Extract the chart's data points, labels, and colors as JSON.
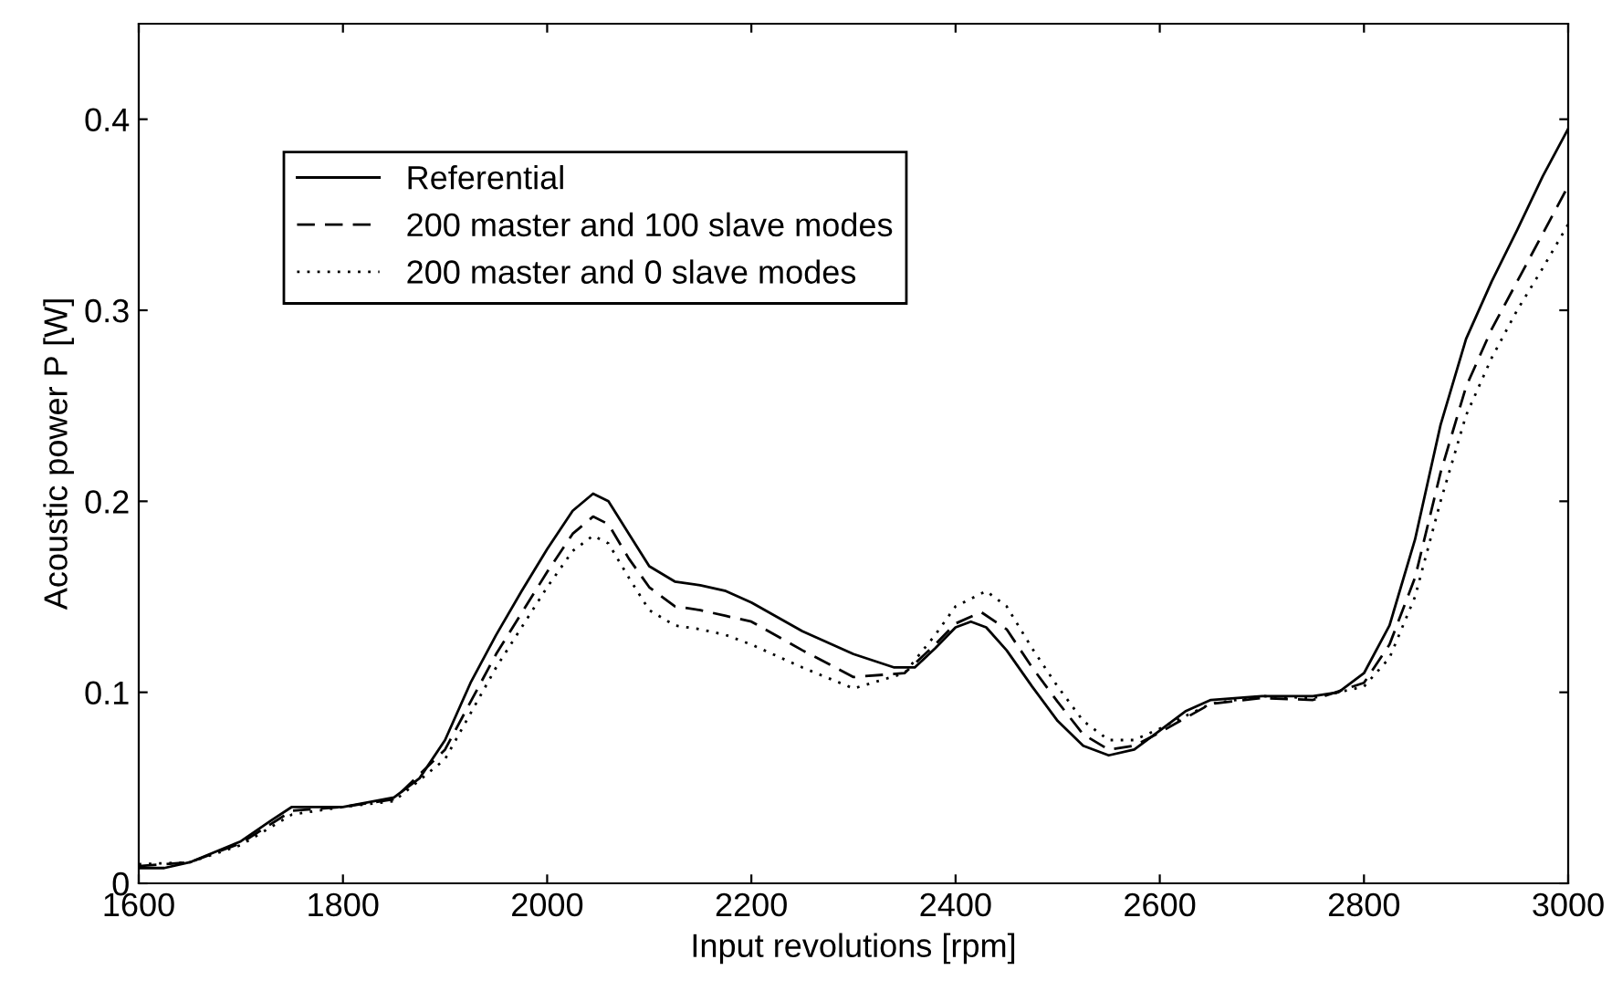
{
  "chart_data": {
    "type": "line",
    "xlabel": "Input revolutions [rpm]",
    "ylabel": "Acoustic power P [W]",
    "xlim": [
      1600,
      3000
    ],
    "ylim": [
      0,
      0.45
    ],
    "xticks": [
      1600,
      1800,
      2000,
      2200,
      2400,
      2600,
      2800,
      3000
    ],
    "yticks": [
      0,
      0.1,
      0.2,
      0.3,
      0.4
    ],
    "grid": false,
    "legend": "top left",
    "series": [
      {
        "name": "Referential",
        "color": "#000000",
        "line_style": "solid",
        "x": [
          1600,
          1625,
          1650,
          1700,
          1730,
          1750,
          1775,
          1800,
          1850,
          1875,
          1900,
          1925,
          1950,
          1975,
          2000,
          2025,
          2045,
          2060,
          2080,
          2100,
          2125,
          2150,
          2175,
          2200,
          2250,
          2300,
          2340,
          2360,
          2380,
          2400,
          2415,
          2430,
          2450,
          2475,
          2500,
          2525,
          2550,
          2575,
          2600,
          2625,
          2650,
          2700,
          2750,
          2775,
          2800,
          2825,
          2850,
          2875,
          2900,
          2925,
          2950,
          2975,
          3000
        ],
        "values": [
          0.008,
          0.008,
          0.011,
          0.022,
          0.033,
          0.04,
          0.04,
          0.04,
          0.045,
          0.055,
          0.075,
          0.105,
          0.13,
          0.153,
          0.175,
          0.195,
          0.204,
          0.2,
          0.183,
          0.166,
          0.158,
          0.156,
          0.153,
          0.147,
          0.132,
          0.12,
          0.113,
          0.113,
          0.123,
          0.134,
          0.137,
          0.134,
          0.122,
          0.103,
          0.085,
          0.072,
          0.067,
          0.07,
          0.08,
          0.09,
          0.096,
          0.098,
          0.098,
          0.1,
          0.11,
          0.135,
          0.18,
          0.24,
          0.285,
          0.315,
          0.342,
          0.37,
          0.395
        ]
      },
      {
        "name": "200 master and 100 slave modes",
        "color": "#000000",
        "line_style": "dashed",
        "x": [
          1600,
          1650,
          1700,
          1750,
          1800,
          1850,
          1900,
          1950,
          2000,
          2025,
          2045,
          2060,
          2080,
          2100,
          2125,
          2150,
          2175,
          2200,
          2250,
          2300,
          2350,
          2380,
          2400,
          2425,
          2450,
          2475,
          2500,
          2525,
          2550,
          2575,
          2600,
          2650,
          2700,
          2750,
          2800,
          2825,
          2850,
          2875,
          2900,
          2925,
          2950,
          2975,
          3000
        ],
        "values": [
          0.009,
          0.011,
          0.021,
          0.038,
          0.04,
          0.044,
          0.07,
          0.12,
          0.163,
          0.183,
          0.192,
          0.188,
          0.17,
          0.155,
          0.145,
          0.143,
          0.14,
          0.137,
          0.122,
          0.108,
          0.11,
          0.125,
          0.136,
          0.142,
          0.133,
          0.113,
          0.095,
          0.078,
          0.07,
          0.072,
          0.079,
          0.094,
          0.097,
          0.096,
          0.105,
          0.125,
          0.16,
          0.215,
          0.26,
          0.29,
          0.315,
          0.34,
          0.365
        ]
      },
      {
        "name": "200 master and 0 slave modes",
        "color": "#000000",
        "line_style": "dotted",
        "x": [
          1600,
          1650,
          1700,
          1750,
          1800,
          1850,
          1900,
          1950,
          2000,
          2025,
          2045,
          2060,
          2080,
          2100,
          2125,
          2150,
          2175,
          2200,
          2250,
          2300,
          2350,
          2380,
          2400,
          2430,
          2450,
          2475,
          2500,
          2525,
          2550,
          2575,
          2600,
          2650,
          2700,
          2750,
          2800,
          2825,
          2850,
          2875,
          2900,
          2925,
          2950,
          2975,
          3000
        ],
        "values": [
          0.01,
          0.011,
          0.02,
          0.036,
          0.04,
          0.043,
          0.065,
          0.113,
          0.155,
          0.174,
          0.182,
          0.178,
          0.16,
          0.143,
          0.135,
          0.133,
          0.13,
          0.125,
          0.113,
          0.102,
          0.11,
          0.13,
          0.145,
          0.153,
          0.145,
          0.123,
          0.103,
          0.085,
          0.075,
          0.075,
          0.081,
          0.094,
          0.098,
          0.097,
          0.103,
          0.118,
          0.15,
          0.2,
          0.245,
          0.275,
          0.3,
          0.322,
          0.345
        ]
      }
    ]
  }
}
